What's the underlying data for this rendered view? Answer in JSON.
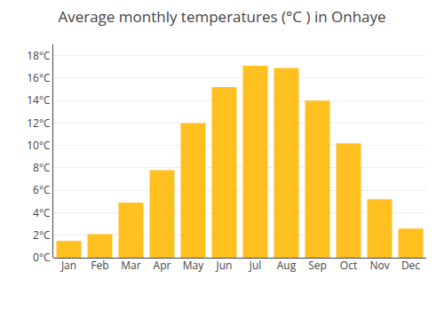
{
  "chart_data": {
    "type": "bar",
    "title": "Average monthly temperatures (°C ) in Onhaye",
    "categories": [
      "Jan",
      "Feb",
      "Mar",
      "Apr",
      "May",
      "Jun",
      "Jul",
      "Aug",
      "Sep",
      "Oct",
      "Nov",
      "Dec"
    ],
    "values": [
      1.5,
      2.1,
      4.9,
      7.8,
      12.0,
      15.2,
      17.1,
      16.9,
      14.0,
      10.2,
      5.2,
      2.6
    ],
    "color": "#FFC020",
    "ylim": [
      0,
      19
    ],
    "yticks": [
      {
        "value": 0,
        "label": "0°C"
      },
      {
        "value": 2,
        "label": "2°C"
      },
      {
        "value": 4,
        "label": "4°C"
      },
      {
        "value": 6,
        "label": "6°C"
      },
      {
        "value": 8,
        "label": "8°C"
      },
      {
        "value": 10,
        "label": "10°C"
      },
      {
        "value": 12,
        "label": "12°C"
      },
      {
        "value": 14,
        "label": "14°C"
      },
      {
        "value": 16,
        "label": "16°C"
      },
      {
        "value": 18,
        "label": "18°C"
      }
    ],
    "grid": true
  }
}
